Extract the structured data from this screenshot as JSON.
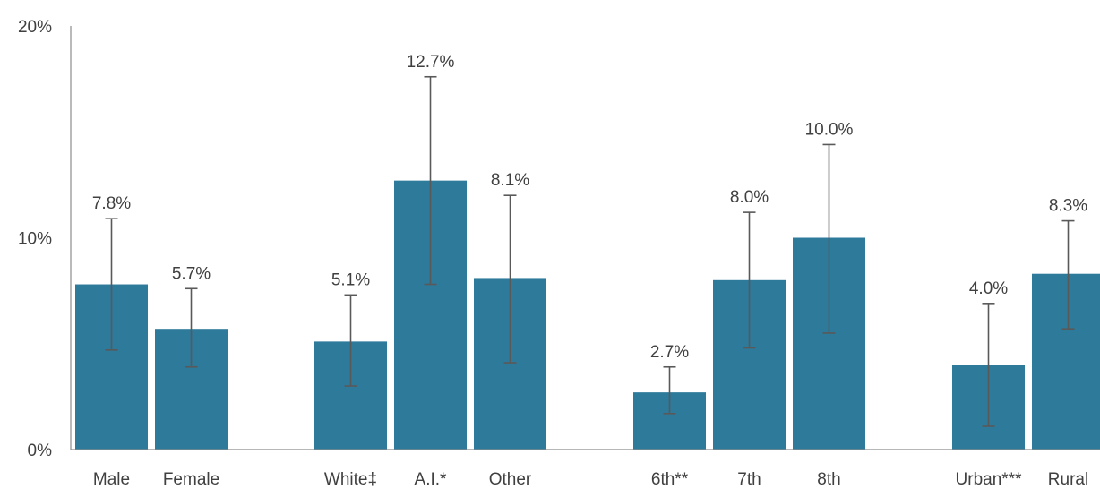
{
  "chart_data": {
    "type": "bar",
    "y_axis": {
      "min": 0,
      "max": 20,
      "ticks": [
        "0%",
        "10%",
        "20%"
      ],
      "tick_values": [
        0,
        10,
        20
      ]
    },
    "grid": false,
    "legend": "none",
    "colors": {
      "bar": "#2e7a9b",
      "error_bar": "#595959",
      "axis": "#8c8c8c",
      "text": "#404040"
    },
    "groups": [
      {
        "bars": [
          {
            "category": "Male",
            "value": 7.8,
            "label": "7.8%",
            "ci_low": 4.7,
            "ci_high": 10.9
          },
          {
            "category": "Female",
            "value": 5.7,
            "label": "5.7%",
            "ci_low": 3.9,
            "ci_high": 7.6
          }
        ]
      },
      {
        "bars": [
          {
            "category": "White‡",
            "value": 5.1,
            "label": "5.1%",
            "ci_low": 3.0,
            "ci_high": 7.3
          },
          {
            "category": "A.I.*",
            "value": 12.7,
            "label": "12.7%",
            "ci_low": 7.8,
            "ci_high": 17.6
          },
          {
            "category": "Other",
            "value": 8.1,
            "label": "8.1%",
            "ci_low": 4.1,
            "ci_high": 12.0
          }
        ]
      },
      {
        "bars": [
          {
            "category": "6th**",
            "value": 2.7,
            "label": "2.7%",
            "ci_low": 1.7,
            "ci_high": 3.9
          },
          {
            "category": "7th",
            "value": 8.0,
            "label": "8.0%",
            "ci_low": 4.8,
            "ci_high": 11.2
          },
          {
            "category": "8th",
            "value": 10.0,
            "label": "10.0%",
            "ci_low": 5.5,
            "ci_high": 14.4
          }
        ]
      },
      {
        "bars": [
          {
            "category": "Urban***",
            "value": 4.0,
            "label": "4.0%",
            "ci_low": 1.1,
            "ci_high": 6.9
          },
          {
            "category": "Rural",
            "value": 8.3,
            "label": "8.3%",
            "ci_low": 5.7,
            "ci_high": 10.8
          }
        ]
      }
    ]
  }
}
